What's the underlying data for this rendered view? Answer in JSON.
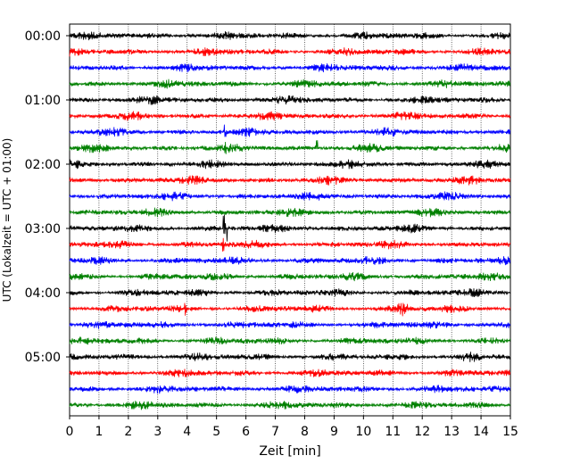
{
  "chart_data": {
    "type": "line",
    "subtype": "helicorder",
    "xlabel": "Zeit  [min]",
    "ylabel": "UTC (Lokalzeit = UTC + 01:00)",
    "xlim": [
      0,
      15
    ],
    "x_ticks": [
      "0",
      "1",
      "2",
      "3",
      "4",
      "5",
      "6",
      "7",
      "8",
      "9",
      "10",
      "11",
      "12",
      "13",
      "14",
      "15"
    ],
    "y_tick_labels": [
      "00:00",
      "01:00",
      "02:00",
      "03:00",
      "04:00",
      "05:00"
    ],
    "trace_interval_min": 15,
    "trace_count": 24,
    "trace_colors": [
      "#000000",
      "#ff0000",
      "#0000ff",
      "#008000"
    ],
    "grid": "vertical dotted lines at each minute",
    "notable_events": [
      {
        "trace": 6,
        "x": 5.3,
        "amplitude": "spike"
      },
      {
        "trace": 7,
        "x": 5.3,
        "amplitude": "spike"
      },
      {
        "trace": 7,
        "x": 8.4,
        "amplitude": "spike"
      },
      {
        "trace": 12,
        "x": 5.3,
        "amplitude": "large"
      },
      {
        "trace": 13,
        "x": 5.25,
        "amplitude": "spike"
      },
      {
        "trace": 17,
        "x": 3.95,
        "amplitude": "spike"
      },
      {
        "trace": 17,
        "x": 11.3,
        "amplitude": "burst"
      },
      {
        "trace": 20,
        "x": 13.6,
        "amplitude": "burst"
      }
    ]
  }
}
